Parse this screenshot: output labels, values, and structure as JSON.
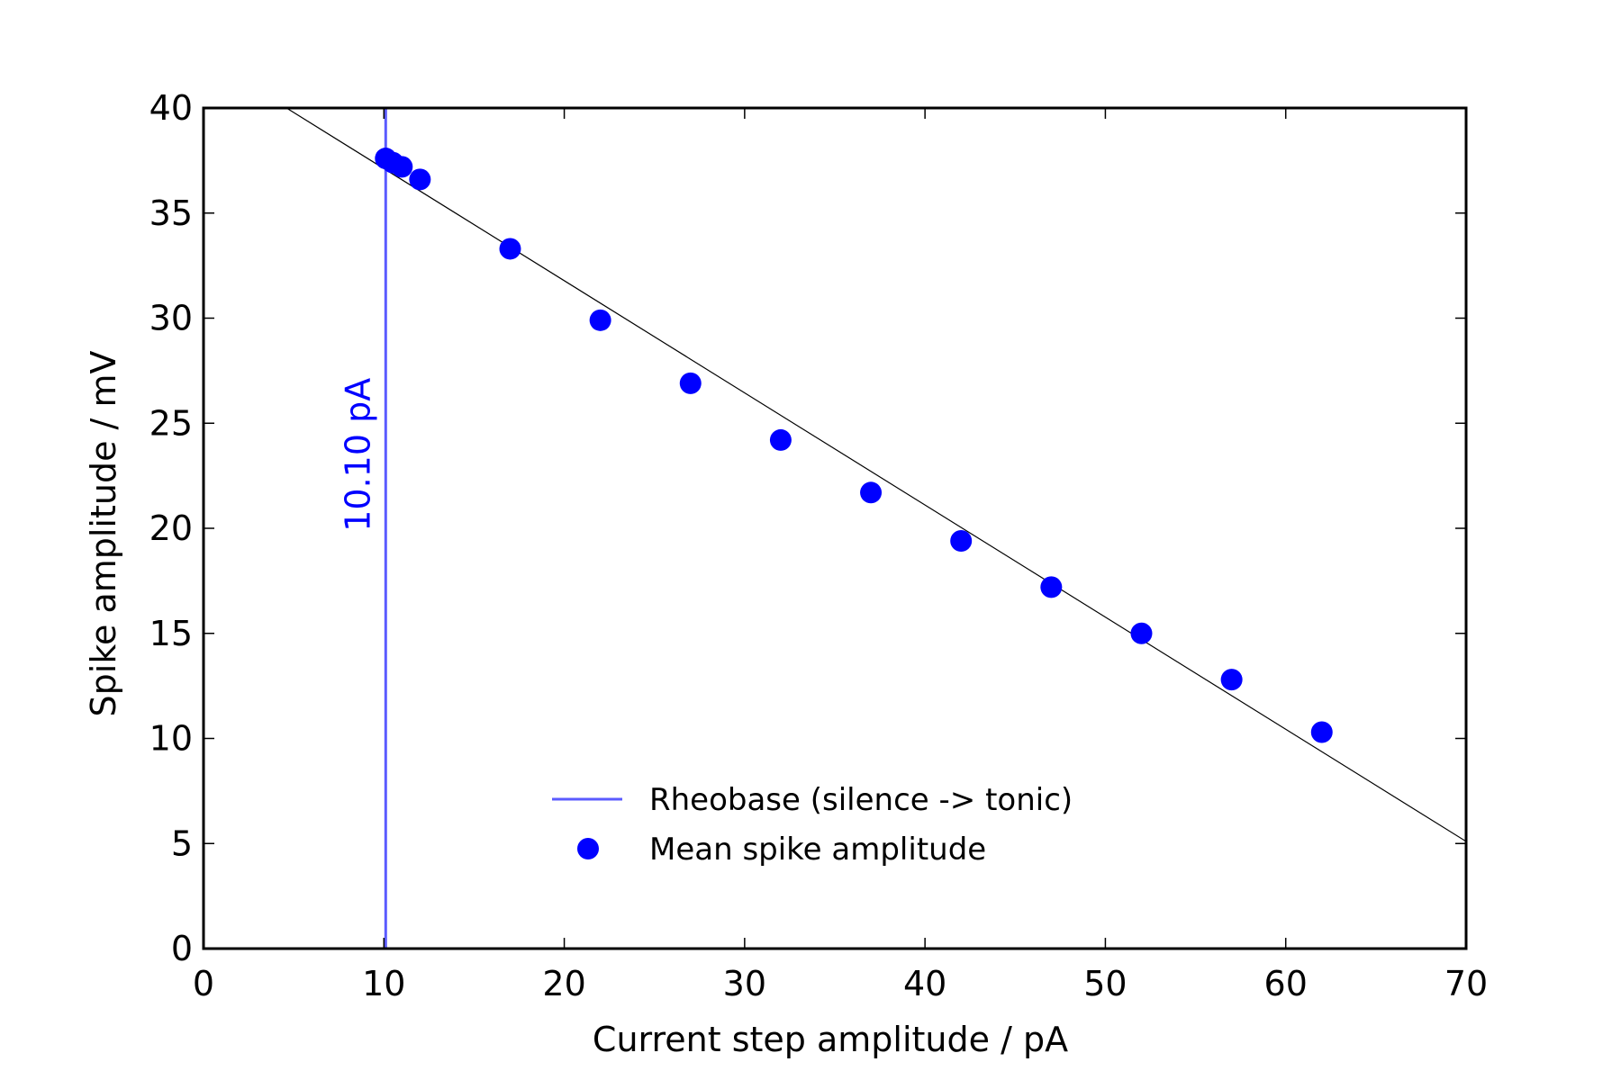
{
  "chart_data": {
    "type": "scatter",
    "xlabel": "Current step amplitude / pA",
    "ylabel": "Spike amplitude / mV",
    "xlim": [
      0,
      70
    ],
    "ylim": [
      0,
      40
    ],
    "xticks": [
      0,
      10,
      20,
      30,
      40,
      50,
      60,
      70
    ],
    "yticks": [
      0,
      5,
      10,
      15,
      20,
      25,
      30,
      35,
      40
    ],
    "grid": false,
    "legend_position": "lower-center",
    "colors": {
      "points": "#0000ff",
      "rheobase_line": "#5b5bff",
      "fit_line": "#000000",
      "annotation": "#0000ff"
    },
    "series": [
      {
        "name": "Mean spike amplitude",
        "kind": "scatter",
        "points": [
          {
            "x": 10.1,
            "y": 37.6
          },
          {
            "x": 10.5,
            "y": 37.4
          },
          {
            "x": 11.0,
            "y": 37.2
          },
          {
            "x": 12.0,
            "y": 36.6
          },
          {
            "x": 17.0,
            "y": 33.3
          },
          {
            "x": 22.0,
            "y": 29.9
          },
          {
            "x": 27.0,
            "y": 26.9
          },
          {
            "x": 32.0,
            "y": 24.2
          },
          {
            "x": 37.0,
            "y": 21.7
          },
          {
            "x": 42.0,
            "y": 19.4
          },
          {
            "x": 47.0,
            "y": 17.2
          },
          {
            "x": 52.0,
            "y": 15.0
          },
          {
            "x": 57.0,
            "y": 12.8
          },
          {
            "x": 62.0,
            "y": 10.3
          }
        ]
      },
      {
        "name": "Rheobase (silence -> tonic)",
        "kind": "vline",
        "x": 10.1
      },
      {
        "kind": "fit",
        "points": [
          {
            "x": 4.6,
            "y": 40.0
          },
          {
            "x": 70.0,
            "y": 5.1
          }
        ]
      }
    ],
    "annotations": [
      {
        "text": "10.10 pA",
        "x": 10.1,
        "y": 23.5,
        "rotation": -90
      }
    ]
  }
}
